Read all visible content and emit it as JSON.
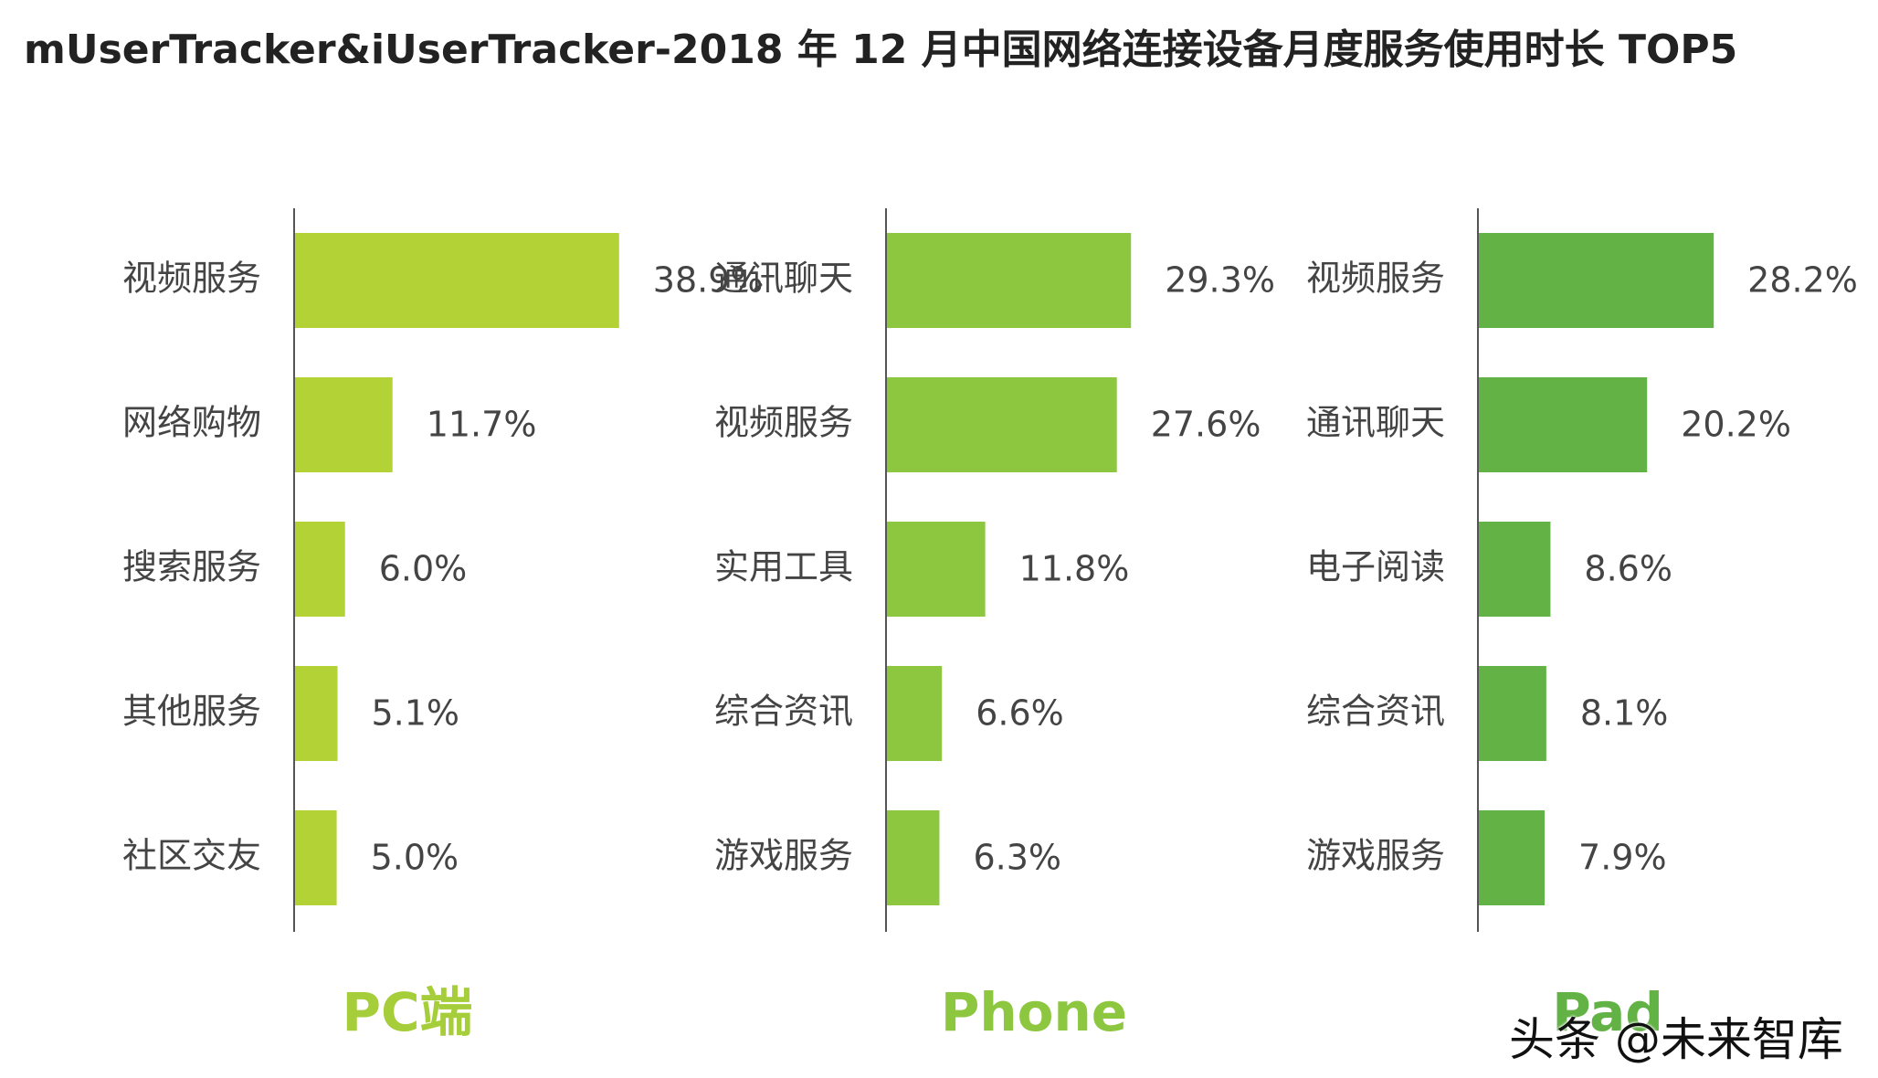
{
  "title": "mUserTracker&iUserTracker-2018 年 12 月中国网络连接设备月度服务使用时长 TOP5",
  "watermark": "头条 @未来智库",
  "chart_data": [
    {
      "type": "bar",
      "orientation": "horizontal",
      "device_label": "PC端",
      "color": "#b2d235",
      "label_color": "#a6cd3a",
      "categories": [
        "视频服务",
        "网络购物",
        "搜索服务",
        "其他服务",
        "社区交友"
      ],
      "values": [
        38.9,
        11.7,
        6.0,
        5.1,
        5.0
      ],
      "value_labels": [
        "38.9%",
        "11.7%",
        "6.0%",
        "5.1%",
        "5.0%"
      ],
      "unit": "%"
    },
    {
      "type": "bar",
      "orientation": "horizontal",
      "device_label": "Phone",
      "color": "#8dc63f",
      "label_color": "#8dc63f",
      "categories": [
        "通讯聊天",
        "视频服务",
        "实用工具",
        "综合资讯",
        "游戏服务"
      ],
      "values": [
        29.3,
        27.6,
        11.8,
        6.6,
        6.3
      ],
      "value_labels": [
        "29.3%",
        "27.6%",
        "11.8%",
        "6.6%",
        "6.3%"
      ],
      "unit": "%"
    },
    {
      "type": "bar",
      "orientation": "horizontal",
      "device_label": "Pad",
      "color": "#62b246",
      "label_color": "#62b246",
      "categories": [
        "视频服务",
        "通讯聊天",
        "电子阅读",
        "综合资讯",
        "游戏服务"
      ],
      "values": [
        28.2,
        20.2,
        8.6,
        8.1,
        7.9
      ],
      "value_labels": [
        "28.2%",
        "20.2%",
        "8.6%",
        "8.1%",
        "7.9%"
      ],
      "unit": "%"
    }
  ]
}
